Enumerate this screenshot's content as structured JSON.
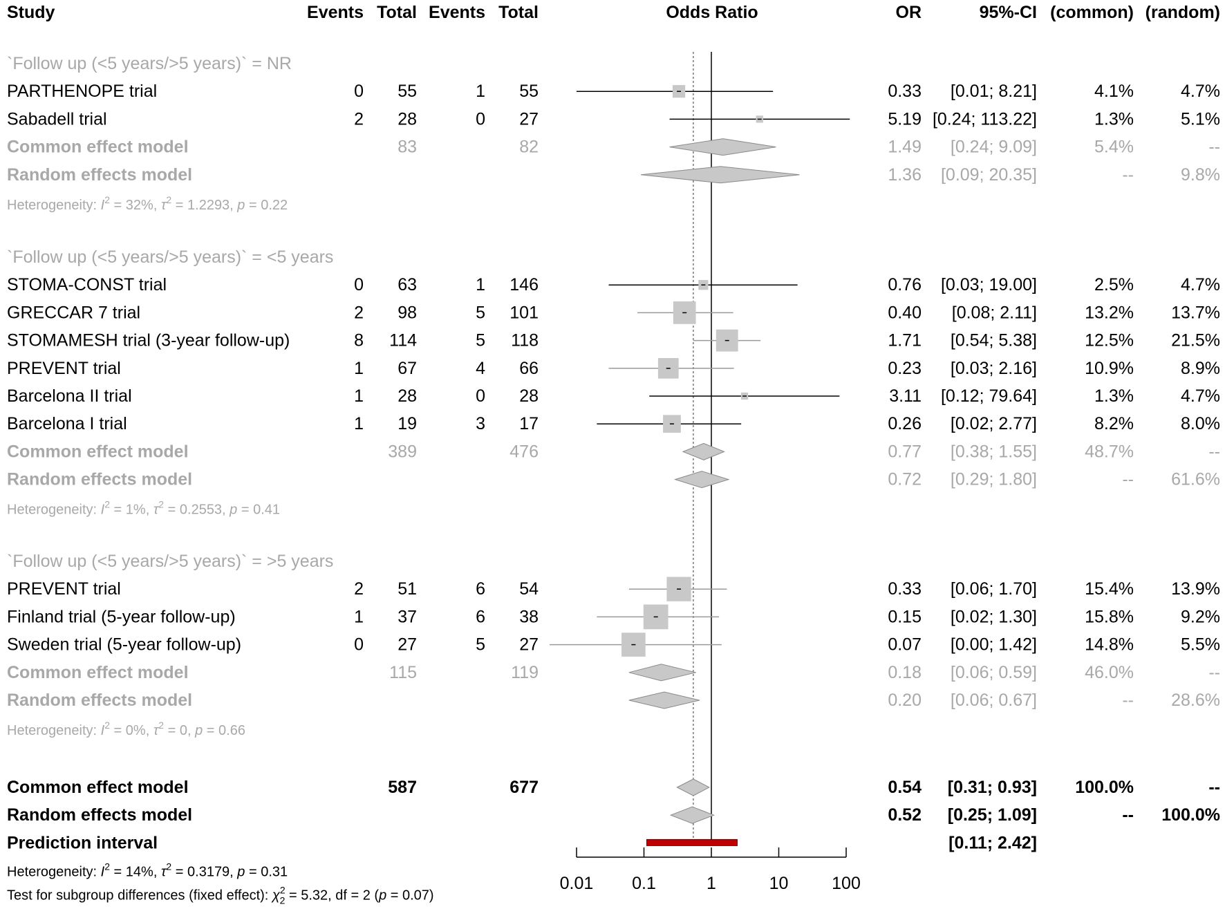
{
  "columns": {
    "study": "Study",
    "events_exp": "Events",
    "total_exp": "Total",
    "events_ctl": "Events",
    "total_ctl": "Total",
    "plot_title": "Odds Ratio",
    "or": "OR",
    "ci": "95%-CI",
    "w_common": "(common)",
    "w_random": "(random)"
  },
  "chart_data": {
    "type": "forest",
    "xscale": "log",
    "xlim": [
      0.01,
      100
    ],
    "xticks": [
      0.01,
      0.1,
      1,
      10,
      100
    ],
    "xtick_labels": [
      "0.01",
      "0.1",
      "1",
      "10",
      "100"
    ],
    "reference_line": 1,
    "overall_common_line": 0.54,
    "groups": [
      {
        "label": "`Follow up (<5 years/>5 years)` = NR",
        "studies": [
          {
            "name": "PARTHENOPE trial",
            "e1": "0",
            "n1": "55",
            "e2": "1",
            "n2": "55",
            "or": 0.33,
            "lo": 0.01,
            "hi": 8.21,
            "or_text": "0.33",
            "ci_text": "[0.01;   8.21]",
            "w_common": "4.1%",
            "w_random": "4.7%",
            "wnum": 4.1
          },
          {
            "name": "Sabadell trial",
            "e1": "2",
            "n1": "28",
            "e2": "0",
            "n2": "27",
            "or": 5.19,
            "lo": 0.24,
            "hi": 113.22,
            "or_text": "5.19",
            "ci_text": "[0.24; 113.22]",
            "w_common": "1.3%",
            "w_random": "5.1%",
            "wnum": 1.3
          }
        ],
        "common": {
          "label": "Common effect model",
          "n1": "83",
          "n2": "82",
          "or": 1.49,
          "lo": 0.24,
          "hi": 9.09,
          "or_text": "1.49",
          "ci_text": "[0.24;   9.09]",
          "w_common": "5.4%",
          "w_random": "--"
        },
        "random": {
          "label": "Random effects model",
          "or": 1.36,
          "lo": 0.09,
          "hi": 20.35,
          "or_text": "1.36",
          "ci_text": "[0.09;  20.35]",
          "w_common": "--",
          "w_random": "9.8%"
        },
        "heterogeneity": {
          "prefix": "Heterogeneity: ",
          "i2": "I",
          "i2_val": " = 32%, ",
          "tau": "τ",
          "tau_val": " = 1.2293, ",
          "p": "p",
          "p_val": " = 0.22"
        }
      },
      {
        "label": "`Follow up (<5 years/>5 years)` = <5 years",
        "studies": [
          {
            "name": "STOMA-CONST trial",
            "e1": "0",
            "n1": "63",
            "e2": "1",
            "n2": "146",
            "or": 0.76,
            "lo": 0.03,
            "hi": 19.0,
            "or_text": "0.76",
            "ci_text": "[0.03;  19.00]",
            "w_common": "2.5%",
            "w_random": "4.7%",
            "wnum": 2.5
          },
          {
            "name": "GRECCAR 7 trial",
            "e1": "2",
            "n1": "98",
            "e2": "5",
            "n2": "101",
            "or": 0.4,
            "lo": 0.08,
            "hi": 2.11,
            "or_text": "0.40",
            "ci_text": "[0.08;   2.11]",
            "w_common": "13.2%",
            "w_random": "13.7%",
            "wnum": 13.2
          },
          {
            "name": "STOMAMESH trial  (3-year follow-up)",
            "e1": "8",
            "n1": "114",
            "e2": "5",
            "n2": "118",
            "or": 1.71,
            "lo": 0.54,
            "hi": 5.38,
            "or_text": "1.71",
            "ci_text": "[0.54;   5.38]",
            "w_common": "12.5%",
            "w_random": "21.5%",
            "wnum": 12.5
          },
          {
            "name": "PREVENT trial",
            "e1": "1",
            "n1": "67",
            "e2": "4",
            "n2": "66",
            "or": 0.23,
            "lo": 0.03,
            "hi": 2.16,
            "or_text": "0.23",
            "ci_text": "[0.03;   2.16]",
            "w_common": "10.9%",
            "w_random": "8.9%",
            "wnum": 10.9
          },
          {
            "name": "Barcelona II trial",
            "e1": "1",
            "n1": "28",
            "e2": "0",
            "n2": "28",
            "or": 3.11,
            "lo": 0.12,
            "hi": 79.64,
            "or_text": "3.11",
            "ci_text": "[0.12;  79.64]",
            "w_common": "1.3%",
            "w_random": "4.7%",
            "wnum": 1.3
          },
          {
            "name": "Barcelona I trial",
            "e1": "1",
            "n1": "19",
            "e2": "3",
            "n2": "17",
            "or": 0.26,
            "lo": 0.02,
            "hi": 2.77,
            "or_text": "0.26",
            "ci_text": "[0.02;   2.77]",
            "w_common": "8.2%",
            "w_random": "8.0%",
            "wnum": 8.2
          }
        ],
        "common": {
          "label": "Common effect model",
          "n1": "389",
          "n2": "476",
          "or": 0.77,
          "lo": 0.38,
          "hi": 1.55,
          "or_text": "0.77",
          "ci_text": "[0.38;   1.55]",
          "w_common": "48.7%",
          "w_random": "--"
        },
        "random": {
          "label": "Random effects model",
          "or": 0.72,
          "lo": 0.29,
          "hi": 1.8,
          "or_text": "0.72",
          "ci_text": "[0.29;   1.80]",
          "w_common": "--",
          "w_random": "61.6%"
        },
        "heterogeneity": {
          "prefix": "Heterogeneity: ",
          "i2": "I",
          "i2_val": " = 1%, ",
          "tau": "τ",
          "tau_val": " = 0.2553, ",
          "p": "p",
          "p_val": " = 0.41"
        }
      },
      {
        "label": "`Follow up (<5 years/>5 years)` = >5 years",
        "studies": [
          {
            "name": "PREVENT trial",
            "e1": "2",
            "n1": "51",
            "e2": "6",
            "n2": "54",
            "or": 0.33,
            "lo": 0.06,
            "hi": 1.7,
            "or_text": "0.33",
            "ci_text": "[0.06;   1.70]",
            "w_common": "15.4%",
            "w_random": "13.9%",
            "wnum": 15.4
          },
          {
            "name": "Finland trial  (5-year follow-up)",
            "e1": "1",
            "n1": "37",
            "e2": "6",
            "n2": "38",
            "or": 0.15,
            "lo": 0.02,
            "hi": 1.3,
            "or_text": "0.15",
            "ci_text": "[0.02;   1.30]",
            "w_common": "15.8%",
            "w_random": "9.2%",
            "wnum": 15.8
          },
          {
            "name": "Sweden trial  (5-year follow-up)",
            "e1": "0",
            "n1": "27",
            "e2": "5",
            "n2": "27",
            "or": 0.07,
            "lo": 0.0,
            "hi": 1.42,
            "or_text": "0.07",
            "ci_text": "[0.00;   1.42]",
            "w_common": "14.8%",
            "w_random": "5.5%",
            "wnum": 14.8
          }
        ],
        "common": {
          "label": "Common effect model",
          "n1": "115",
          "n2": "119",
          "or": 0.18,
          "lo": 0.06,
          "hi": 0.59,
          "or_text": "0.18",
          "ci_text": "[0.06;   0.59]",
          "w_common": "46.0%",
          "w_random": "--"
        },
        "random": {
          "label": "Random effects model",
          "or": 0.2,
          "lo": 0.06,
          "hi": 0.67,
          "or_text": "0.20",
          "ci_text": "[0.06;   0.67]",
          "w_common": "--",
          "w_random": "28.6%"
        },
        "heterogeneity": {
          "prefix": "Heterogeneity: ",
          "i2": "I",
          "i2_val": " = 0%, ",
          "tau": "τ",
          "tau_val": " = 0, ",
          "p": "p",
          "p_val": " = 0.66"
        }
      }
    ],
    "overall": {
      "common": {
        "label": "Common effect model",
        "n1": "587",
        "n2": "677",
        "or": 0.54,
        "lo": 0.31,
        "hi": 0.93,
        "or_text": "0.54",
        "ci_text": "[0.31;   0.93]",
        "w_common": "100.0%",
        "w_random": "--"
      },
      "random": {
        "label": "Random effects model",
        "or": 0.52,
        "lo": 0.25,
        "hi": 1.09,
        "or_text": "0.52",
        "ci_text": "[0.25;   1.09]",
        "w_common": "--",
        "w_random": "100.0%"
      },
      "prediction": {
        "label": "Prediction interval",
        "lo": 0.11,
        "hi": 2.42,
        "ci_text": "[0.11;   2.42]"
      },
      "heterogeneity": {
        "prefix": "Heterogeneity: ",
        "i2": "I",
        "i2_val": " = 14%, ",
        "tau": "τ",
        "tau_val": " = 0.3179, ",
        "p": "p",
        "p_val": " = 0.31"
      },
      "subgroup_test": {
        "prefix": "Test for subgroup differences (fixed effect): ",
        "chi": "χ",
        "chi_sub": "2",
        "chi_val": " = 5.32, df = 2 (",
        "p": "p",
        "p_val": " = 0.07)"
      }
    }
  },
  "colors": {
    "text": "#000000",
    "muted": "#a8a8a8",
    "box": "#c8c8c8",
    "diamond": "#c8c8c8",
    "prediction": "#c00000"
  }
}
